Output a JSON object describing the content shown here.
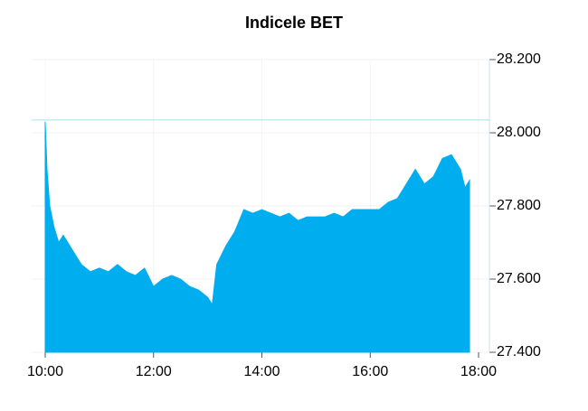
{
  "chart_data": {
    "type": "area",
    "title": "Indicele BET",
    "x": [
      "10:00",
      "10:02",
      "10:05",
      "10:10",
      "10:15",
      "10:20",
      "10:30",
      "10:40",
      "10:50",
      "11:00",
      "11:10",
      "11:20",
      "11:30",
      "11:40",
      "11:50",
      "12:00",
      "12:10",
      "12:20",
      "12:30",
      "12:40",
      "12:50",
      "13:00",
      "13:05",
      "13:10",
      "13:20",
      "13:30",
      "13:40",
      "13:50",
      "14:00",
      "14:10",
      "14:20",
      "14:30",
      "14:40",
      "14:50",
      "15:00",
      "15:10",
      "15:20",
      "15:30",
      "15:40",
      "15:50",
      "16:00",
      "16:10",
      "16:20",
      "16:30",
      "16:40",
      "16:50",
      "17:00",
      "17:10",
      "17:20",
      "17:30",
      "17:40",
      "17:45",
      "17:50"
    ],
    "values": [
      28030,
      27900,
      27800,
      27740,
      27700,
      27720,
      27680,
      27640,
      27620,
      27630,
      27620,
      27640,
      27620,
      27610,
      27630,
      27580,
      27600,
      27610,
      27600,
      27580,
      27570,
      27550,
      27530,
      27640,
      27690,
      27730,
      27790,
      27780,
      27790,
      27780,
      27770,
      27780,
      27760,
      27770,
      27770,
      27770,
      27780,
      27770,
      27790,
      27790,
      27790,
      27790,
      27810,
      27820,
      27860,
      27900,
      27860,
      27880,
      27930,
      27940,
      27900,
      27850,
      27870
    ],
    "color": "#00aeef",
    "reference_line": 28035,
    "reference_color": "#9fe3ef",
    "xlim": [
      "09:45",
      "18:12"
    ],
    "xticks": [
      "10:00",
      "12:00",
      "14:00",
      "16:00",
      "18:00"
    ],
    "ylim": [
      27400,
      28200
    ],
    "yticks": [
      {
        "value": 27400,
        "label": "27.400"
      },
      {
        "value": 27600,
        "label": "27.600"
      },
      {
        "value": 27800,
        "label": "27.800"
      },
      {
        "value": 28000,
        "label": "28.000"
      },
      {
        "value": 28200,
        "label": "28.200"
      }
    ],
    "grid": true
  }
}
